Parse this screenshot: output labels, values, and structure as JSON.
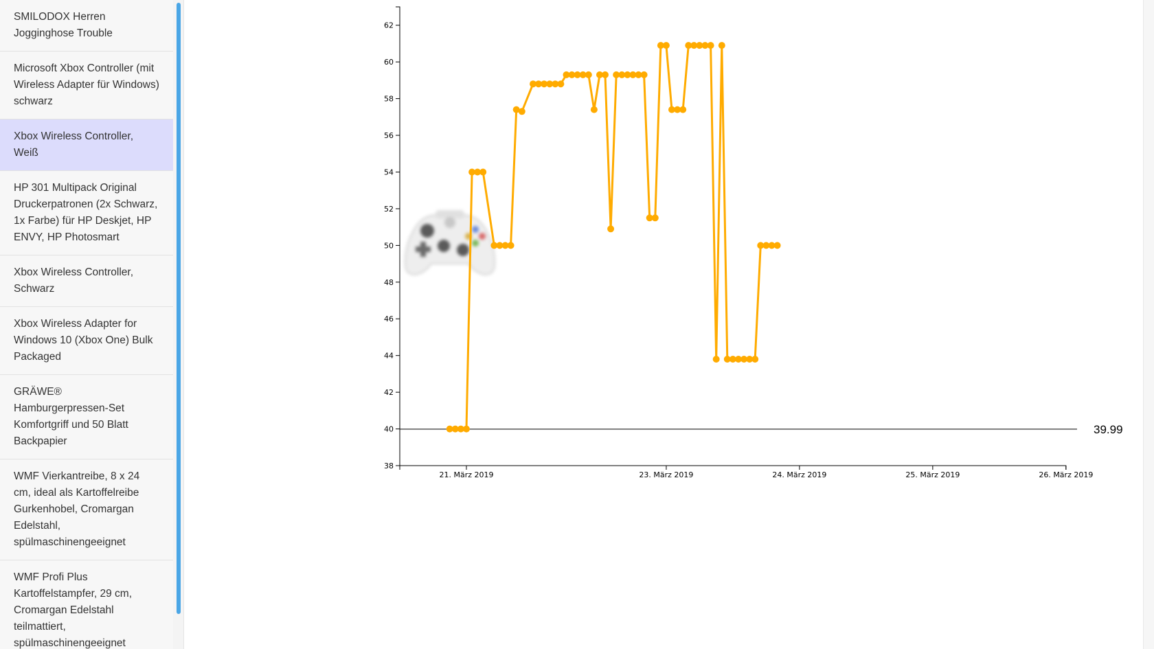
{
  "sidebar": {
    "items": [
      {
        "label": "SMILODOX Herren Jogginghose Trouble",
        "selected": false
      },
      {
        "label": "Microsoft Xbox Controller (mit Wireless Adapter für Windows) schwarz",
        "selected": false
      },
      {
        "label": "Xbox Wireless Controller, Weiß",
        "selected": true
      },
      {
        "label": "HP 301 Multipack Original Druckerpatronen (2x Schwarz, 1x Farbe) für HP Deskjet, HP ENVY, HP Photosmart",
        "selected": false
      },
      {
        "label": "Xbox Wireless Controller, Schwarz",
        "selected": false
      },
      {
        "label": "Xbox Wireless Adapter for Windows 10 (Xbox One) Bulk Packaged",
        "selected": false
      },
      {
        "label": "GRÄWE® Hamburgerpressen-Set Komfortgriff und 50 Blatt Backpapier",
        "selected": false
      },
      {
        "label": "WMF Vierkantreibe, 8 x 24 cm, ideal als Kartoffelreibe Gurkenhobel, Cromargan Edelstahl, spülmaschinengeeignet",
        "selected": false
      },
      {
        "label": "WMF Profi Plus Kartoffelstampfer, 29 cm, Cromargan Edelstahl teilmattiert, spülmaschinengeeignet",
        "selected": false
      }
    ]
  },
  "product_image": {
    "icon": "xbox-controller-white-icon"
  },
  "chart_data": {
    "type": "line",
    "title": "",
    "xlabel": "",
    "ylabel": "",
    "ylim": [
      38,
      63
    ],
    "xlim": [
      "2019-03-21T00:00",
      "2019-03-26T02:00"
    ],
    "yticks": [
      38,
      40,
      42,
      44,
      46,
      48,
      50,
      52,
      54,
      56,
      58,
      60,
      62
    ],
    "xticks": [
      {
        "t": "2019-03-21T12:00",
        "label": "21. März 2019"
      },
      {
        "t": "2019-03-23T00:00",
        "label": "23. März 2019"
      },
      {
        "t": "2019-03-24T00:00",
        "label": "24. März 2019"
      },
      {
        "t": "2019-03-25T00:00",
        "label": "25. März 2019"
      },
      {
        "t": "2019-03-26T00:00",
        "label": "26. März 2019"
      }
    ],
    "line_color": "#ffab00",
    "reference_line": {
      "value": 39.99,
      "label": "39.99",
      "color": "#000000"
    },
    "grid": false,
    "legend": "none",
    "series": [
      {
        "points": [
          [
            "2019-03-21T09:00",
            40.0
          ],
          [
            "2019-03-21T10:00",
            40.0
          ],
          [
            "2019-03-21T11:00",
            40.0
          ],
          [
            "2019-03-21T12:00",
            40.0
          ],
          [
            "2019-03-21T13:00",
            54.0
          ],
          [
            "2019-03-21T14:00",
            54.0
          ],
          [
            "2019-03-21T15:00",
            54.0
          ],
          [
            "2019-03-21T17:00",
            50.0
          ],
          [
            "2019-03-21T18:00",
            50.0
          ],
          [
            "2019-03-21T19:00",
            50.0
          ],
          [
            "2019-03-21T20:00",
            50.0
          ],
          [
            "2019-03-21T21:00",
            57.4
          ],
          [
            "2019-03-21T22:00",
            57.3
          ],
          [
            "2019-03-22T00:00",
            58.8
          ],
          [
            "2019-03-22T01:00",
            58.8
          ],
          [
            "2019-03-22T02:00",
            58.8
          ],
          [
            "2019-03-22T03:00",
            58.8
          ],
          [
            "2019-03-22T04:00",
            58.8
          ],
          [
            "2019-03-22T05:00",
            58.8
          ],
          [
            "2019-03-22T06:00",
            59.3
          ],
          [
            "2019-03-22T07:00",
            59.3
          ],
          [
            "2019-03-22T08:00",
            59.3
          ],
          [
            "2019-03-22T09:00",
            59.3
          ],
          [
            "2019-03-22T10:00",
            59.3
          ],
          [
            "2019-03-22T11:00",
            57.4
          ],
          [
            "2019-03-22T12:00",
            59.3
          ],
          [
            "2019-03-22T13:00",
            59.3
          ],
          [
            "2019-03-22T14:00",
            50.9
          ],
          [
            "2019-03-22T15:00",
            59.3
          ],
          [
            "2019-03-22T16:00",
            59.3
          ],
          [
            "2019-03-22T17:00",
            59.3
          ],
          [
            "2019-03-22T18:00",
            59.3
          ],
          [
            "2019-03-22T19:00",
            59.3
          ],
          [
            "2019-03-22T20:00",
            59.3
          ],
          [
            "2019-03-22T21:00",
            51.5
          ],
          [
            "2019-03-22T22:00",
            51.5
          ],
          [
            "2019-03-22T23:00",
            60.9
          ],
          [
            "2019-03-23T00:00",
            60.9
          ],
          [
            "2019-03-23T01:00",
            57.4
          ],
          [
            "2019-03-23T02:00",
            57.4
          ],
          [
            "2019-03-23T03:00",
            57.4
          ],
          [
            "2019-03-23T04:00",
            60.9
          ],
          [
            "2019-03-23T05:00",
            60.9
          ],
          [
            "2019-03-23T06:00",
            60.9
          ],
          [
            "2019-03-23T07:00",
            60.9
          ],
          [
            "2019-03-23T08:00",
            60.9
          ],
          [
            "2019-03-23T09:00",
            43.8
          ],
          [
            "2019-03-23T10:00",
            60.9
          ],
          [
            "2019-03-23T11:00",
            43.8
          ],
          [
            "2019-03-23T12:00",
            43.8
          ],
          [
            "2019-03-23T13:00",
            43.8
          ],
          [
            "2019-03-23T14:00",
            43.8
          ],
          [
            "2019-03-23T15:00",
            43.8
          ],
          [
            "2019-03-23T16:00",
            43.8
          ],
          [
            "2019-03-23T17:00",
            50.0
          ],
          [
            "2019-03-23T18:00",
            50.0
          ],
          [
            "2019-03-23T19:00",
            50.0
          ],
          [
            "2019-03-23T20:00",
            50.0
          ]
        ]
      }
    ]
  }
}
